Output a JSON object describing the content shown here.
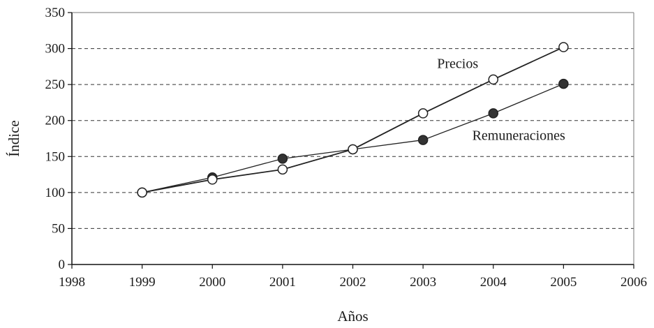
{
  "chart_data": {
    "type": "line",
    "title": "",
    "xlabel": "Años",
    "ylabel": "Índice",
    "xlim": [
      1998,
      2006
    ],
    "ylim": [
      0,
      350
    ],
    "xticks": [
      1998,
      1999,
      2000,
      2001,
      2002,
      2003,
      2004,
      2005,
      2006
    ],
    "yticks": [
      0,
      50,
      100,
      150,
      200,
      250,
      300,
      350
    ],
    "grid": "horizontal dashed",
    "legend": "inline labels",
    "series": [
      {
        "name": "Precios",
        "marker": "open-circle",
        "color": "#222222",
        "x": [
          1999,
          2000,
          2001,
          2002,
          2003,
          2004,
          2005
        ],
        "values": [
          100,
          118,
          132,
          160,
          210,
          257,
          302
        ]
      },
      {
        "name": "Remuneraciones",
        "marker": "filled-circle",
        "color": "#222222",
        "x": [
          1999,
          2000,
          2001,
          2002,
          2003,
          2004,
          2005
        ],
        "values": [
          100,
          121,
          147,
          160,
          173,
          210,
          251
        ]
      }
    ]
  }
}
